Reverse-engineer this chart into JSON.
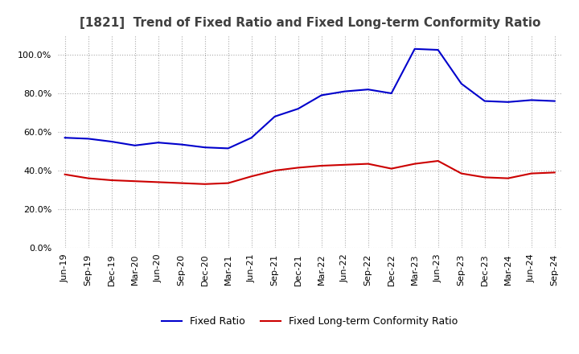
{
  "title": "[1821]  Trend of Fixed Ratio and Fixed Long-term Conformity Ratio",
  "title_fontsize": 11,
  "fixed_ratio": {
    "label": "Fixed Ratio",
    "color": "#0000CC",
    "data": [
      [
        "Jun-19",
        57.0
      ],
      [
        "Sep-19",
        56.5
      ],
      [
        "Dec-19",
        55.0
      ],
      [
        "Mar-20",
        53.0
      ],
      [
        "Jun-20",
        54.5
      ],
      [
        "Sep-20",
        53.5
      ],
      [
        "Dec-20",
        52.0
      ],
      [
        "Mar-21",
        51.5
      ],
      [
        "Jun-21",
        57.0
      ],
      [
        "Sep-21",
        68.0
      ],
      [
        "Dec-21",
        72.0
      ],
      [
        "Mar-22",
        79.0
      ],
      [
        "Jun-22",
        81.0
      ],
      [
        "Sep-22",
        82.0
      ],
      [
        "Dec-22",
        80.0
      ],
      [
        "Mar-23",
        103.0
      ],
      [
        "Jun-23",
        102.5
      ],
      [
        "Sep-23",
        85.0
      ],
      [
        "Dec-23",
        76.0
      ],
      [
        "Mar-24",
        75.5
      ],
      [
        "Jun-24",
        76.5
      ],
      [
        "Sep-24",
        76.0
      ]
    ]
  },
  "fixed_lt_ratio": {
    "label": "Fixed Long-term Conformity Ratio",
    "color": "#CC0000",
    "data": [
      [
        "Jun-19",
        38.0
      ],
      [
        "Sep-19",
        36.0
      ],
      [
        "Dec-19",
        35.0
      ],
      [
        "Mar-20",
        34.5
      ],
      [
        "Jun-20",
        34.0
      ],
      [
        "Sep-20",
        33.5
      ],
      [
        "Dec-20",
        33.0
      ],
      [
        "Mar-21",
        33.5
      ],
      [
        "Jun-21",
        37.0
      ],
      [
        "Sep-21",
        40.0
      ],
      [
        "Dec-21",
        41.5
      ],
      [
        "Mar-22",
        42.5
      ],
      [
        "Jun-22",
        43.0
      ],
      [
        "Sep-22",
        43.5
      ],
      [
        "Dec-22",
        41.0
      ],
      [
        "Mar-23",
        43.5
      ],
      [
        "Jun-23",
        45.0
      ],
      [
        "Sep-23",
        38.5
      ],
      [
        "Dec-23",
        36.5
      ],
      [
        "Mar-24",
        36.0
      ],
      [
        "Jun-24",
        38.5
      ],
      [
        "Sep-24",
        39.0
      ]
    ]
  },
  "ylim": [
    0.0,
    110.0
  ],
  "yticks": [
    0.0,
    20.0,
    40.0,
    60.0,
    80.0,
    100.0
  ],
  "background_color": "#FFFFFF",
  "grid_color": "#AAAAAA",
  "legend_fontsize": 9,
  "axis_fontsize": 8
}
